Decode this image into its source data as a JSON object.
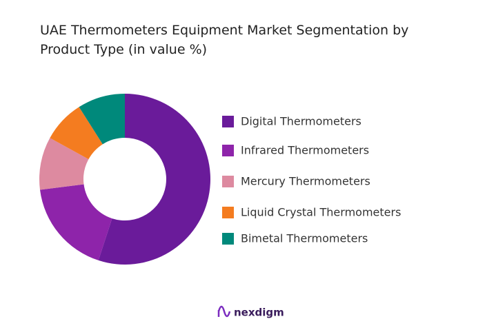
{
  "chart_data": {
    "type": "donut",
    "title": "UAE Thermometers Equipment Market Segmentation by Product Type (in value %)",
    "categories": [
      "Digital Thermometers",
      "Infrared Thermometers",
      "Mercury Thermometers",
      "Liquid Crystal Thermometers",
      "Bimetal Thermometers"
    ],
    "values": [
      55,
      18,
      10,
      8,
      9
    ],
    "colors": [
      "#6a1b9a",
      "#8e24aa",
      "#dd8aa0",
      "#f47c20",
      "#00897b"
    ],
    "legend": "right",
    "brand": "nexdigm"
  }
}
